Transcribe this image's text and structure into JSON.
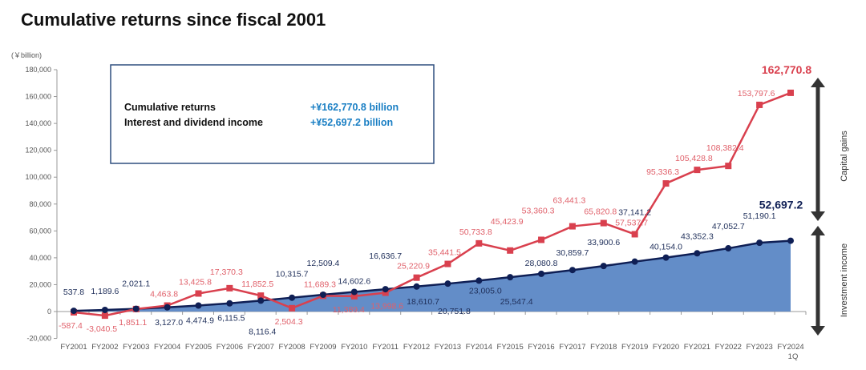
{
  "title": "Cumulative returns since fiscal 2001",
  "chart_data": {
    "type": "line",
    "title": "Cumulative returns since fiscal 2001",
    "ylabel": "(￥billion)",
    "ylim": [
      -20000,
      180000
    ],
    "yticks": [
      -20000,
      0,
      20000,
      40000,
      60000,
      80000,
      100000,
      120000,
      140000,
      160000,
      180000
    ],
    "ytick_labels": [
      "-20,000",
      "0",
      "20,000",
      "40,000",
      "60,000",
      "80,000",
      "100,000",
      "120,000",
      "140,000",
      "160,000",
      "180,000"
    ],
    "categories": [
      "FY2001",
      "FY2002",
      "FY2003",
      "FY2004",
      "FY2005",
      "FY2006",
      "FY2007",
      "FY2008",
      "FY2009",
      "FY2010",
      "FY2011",
      "FY2012",
      "FY2013",
      "FY2014",
      "FY2015",
      "FY2016",
      "FY2017",
      "FY2018",
      "FY2019",
      "FY2020",
      "FY2021",
      "FY2022",
      "FY2023",
      "FY2024"
    ],
    "category_sublabel": "1Q",
    "series": [
      {
        "name": "Cumulative returns",
        "color": "#d9404e",
        "values": [
          -587.4,
          -3040.5,
          1851.1,
          4463.8,
          13425.8,
          17370.3,
          11852.5,
          2504.3,
          11689.3,
          11389.4,
          13998.6,
          25220.9,
          35441.5,
          50733.8,
          45423.9,
          53360.3,
          63441.3,
          65820.8,
          57537.7,
          95336.3,
          105428.8,
          108382.4,
          153797.6,
          162770.8
        ],
        "labels": [
          "-587.4",
          "-3,040.5",
          "1,851.1",
          "4,463.8",
          "13,425.8",
          "17,370.3",
          "11,852.5",
          "2,504.3",
          "11,689.3",
          "11,389.4",
          "13,998.6",
          "25,220.9",
          "35,441.5",
          "50,733.8",
          "45,423.9",
          "53,360.3",
          "63,441.3",
          "65,820.8",
          "57,537.7",
          "95,336.3",
          "105,428.8",
          "108,382.4",
          "153,797.6",
          "162,770.8"
        ]
      },
      {
        "name": "Interest and dividend income",
        "color": "#0f1f55",
        "fill": "#5b87c5",
        "values": [
          537.8,
          1189.6,
          2021.1,
          3127.0,
          4474.9,
          6115.5,
          8116.4,
          10315.7,
          12509.4,
          14602.6,
          16636.7,
          18610.7,
          20751.8,
          23005.0,
          25547.4,
          28080.8,
          30859.7,
          33900.6,
          37141.2,
          40154.0,
          43352.3,
          47052.7,
          51190.1,
          52697.2
        ],
        "labels": [
          "537.8",
          "1,189.6",
          "2,021.1",
          "3,127.0",
          "4,474.9",
          "6,115.5",
          "8,116.4",
          "10,315.7",
          "12,509.4",
          "14,602.6",
          "16,636.7",
          "18,610.7",
          "20,751.8",
          "23,005.0",
          "25,547.4",
          "28,080.8",
          "30,859.7",
          "33,900.6",
          "37,141.2",
          "40,154.0",
          "43,352.3",
          "47,052.7",
          "51,190.1",
          "52,697.2"
        ]
      }
    ],
    "summary_box": {
      "rows": [
        {
          "label": "Cumulative returns",
          "value": "+¥162,770.8 billion"
        },
        {
          "label": "Interest and dividend income",
          "value": "+¥52,697.2 billion"
        }
      ]
    },
    "annotations": {
      "capital_gains": "Capital gains",
      "investment_income": "Investment income"
    },
    "grid": false
  }
}
